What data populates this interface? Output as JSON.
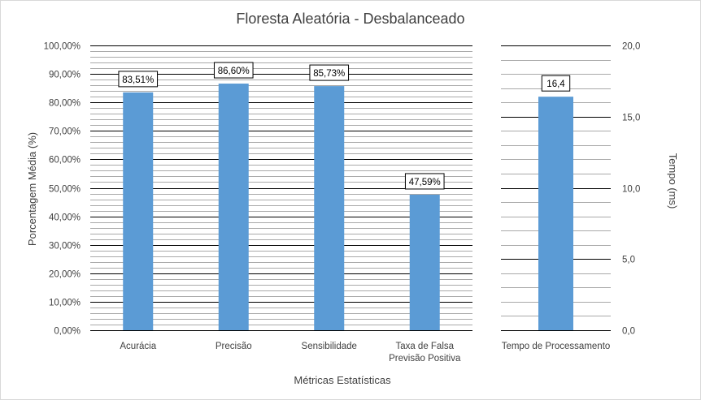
{
  "chart_data": {
    "type": "bar",
    "title": "Floresta Aleatória - Desbalanceado",
    "xlabel": "Métricas Estatísticas",
    "color": "#5b9bd5",
    "grid": true,
    "panels": [
      {
        "categories": [
          [
            "Acurácia"
          ],
          [
            "Precisão"
          ],
          [
            "Sensibilidade"
          ],
          [
            "Taxa de Falsa",
            "Previsão Positiva"
          ]
        ],
        "values": [
          83.51,
          86.6,
          85.73,
          47.59
        ],
        "data_labels": [
          "83,51%",
          "86,60%",
          "85,73%",
          "47,59%"
        ],
        "ylabel": "Porcentagem Média (%)",
        "ylim": [
          0,
          100
        ],
        "y_ticks": [
          "0,00%",
          "10,00%",
          "20,00%",
          "30,00%",
          "40,00%",
          "50,00%",
          "60,00%",
          "70,00%",
          "80,00%",
          "90,00%",
          "100,00%"
        ],
        "axis_side": "left"
      },
      {
        "categories": [
          [
            "Tempo de Processamento"
          ]
        ],
        "values": [
          16.4
        ],
        "data_labels": [
          "16,4"
        ],
        "ylabel": "Tempo (ms)",
        "ylim": [
          0,
          20
        ],
        "y_ticks": [
          "0,0",
          "5,0",
          "10,0",
          "15,0",
          "20,0"
        ],
        "axis_side": "right"
      }
    ]
  }
}
